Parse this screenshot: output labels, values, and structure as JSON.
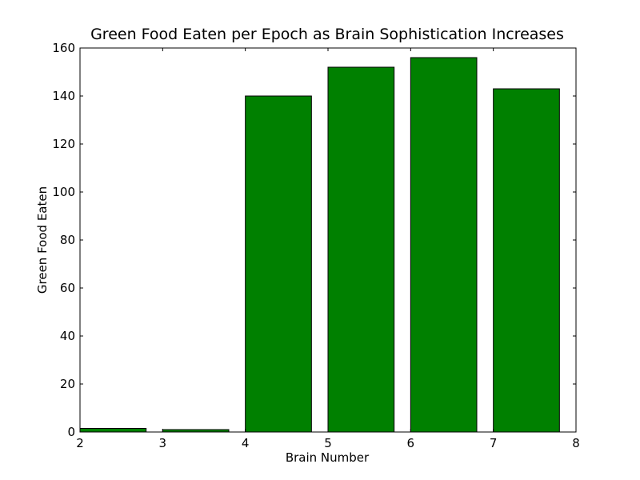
{
  "chart_data": {
    "type": "bar",
    "title": "Green Food Eaten per Epoch as Brain Sophistication Increases",
    "xlabel": "Brain Number",
    "ylabel": "Green Food Eaten",
    "x": [
      2,
      3,
      4,
      5,
      6,
      7
    ],
    "values": [
      1.5,
      1,
      140,
      152,
      156,
      143
    ],
    "bar_width": 0.8,
    "xlim": [
      2,
      8
    ],
    "ylim": [
      0,
      160
    ],
    "xticks": [
      2,
      3,
      4,
      5,
      6,
      7,
      8
    ],
    "yticks": [
      0,
      20,
      40,
      60,
      80,
      100,
      120,
      140,
      160
    ],
    "bar_color": "#008000",
    "edge_color": "#000000",
    "grid": false,
    "legend": false
  }
}
